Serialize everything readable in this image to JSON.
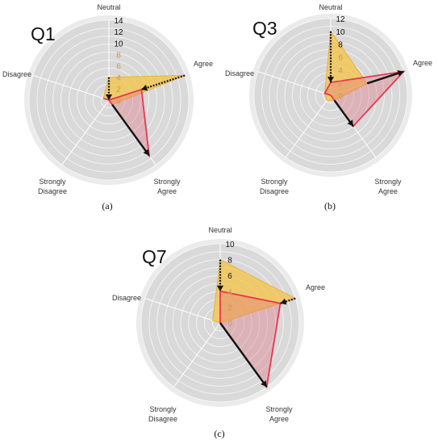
{
  "figure": {
    "colors": {
      "yellow_fill": "#f5c23e",
      "red_fill": "#e06a7a",
      "red_line": "#e8364f",
      "grid_ring": "#ffffff",
      "disc_fill": "#d9d9d9",
      "arrow": "#111111"
    }
  },
  "chart_data": [
    {
      "type": "radar",
      "title": "Q1",
      "caption": "(a)",
      "axes": [
        "Neutral",
        "Agree",
        "Strongly Agree",
        "Strongly Disagree",
        "Disagree"
      ],
      "axis_labels": [
        "Neutral",
        "Agree",
        "Strongly\nAgree",
        "Strongly\nDisagree",
        "Disagree"
      ],
      "rmax": 14,
      "ticks": [
        0,
        2,
        4,
        6,
        8,
        10,
        12,
        14
      ],
      "series": [
        {
          "values": [
            4,
            14,
            1,
            0,
            1
          ]
        },
        {
          "values": [
            0,
            6,
            12,
            0,
            1
          ]
        }
      ]
    },
    {
      "type": "radar",
      "title": "Q3",
      "caption": "(b)",
      "axes": [
        "Neutral",
        "Agree",
        "Strongly Agree",
        "Strongly Disagree",
        "Disagree"
      ],
      "axis_labels": [
        "Neutral",
        "Agree",
        "Strongly\nAgree",
        "Strongly\nDisagree",
        "Disagree"
      ],
      "rmax": 12,
      "ticks": [
        0,
        2,
        4,
        6,
        8,
        10,
        12
      ],
      "series": [
        {
          "values": [
            10,
            6,
            1,
            1,
            1
          ]
        },
        {
          "values": [
            2,
            12,
            6,
            0,
            1
          ]
        }
      ]
    },
    {
      "type": "radar",
      "title": "Q7",
      "caption": "(c)",
      "axes": [
        "Neutral",
        "Agree",
        "Strongly Agree",
        "Strongly Disagree",
        "Disagree"
      ],
      "axis_labels": [
        "Neutral",
        "Agree",
        "Strongly\nAgree",
        "Strongly\nDisagree",
        "Disagree"
      ],
      "rmax": 10,
      "ticks": [
        0,
        2,
        4,
        6,
        8,
        10
      ],
      "series": [
        {
          "values": [
            8,
            10,
            0,
            0,
            1
          ]
        },
        {
          "values": [
            4,
            8,
            10,
            0,
            0
          ]
        }
      ]
    }
  ]
}
